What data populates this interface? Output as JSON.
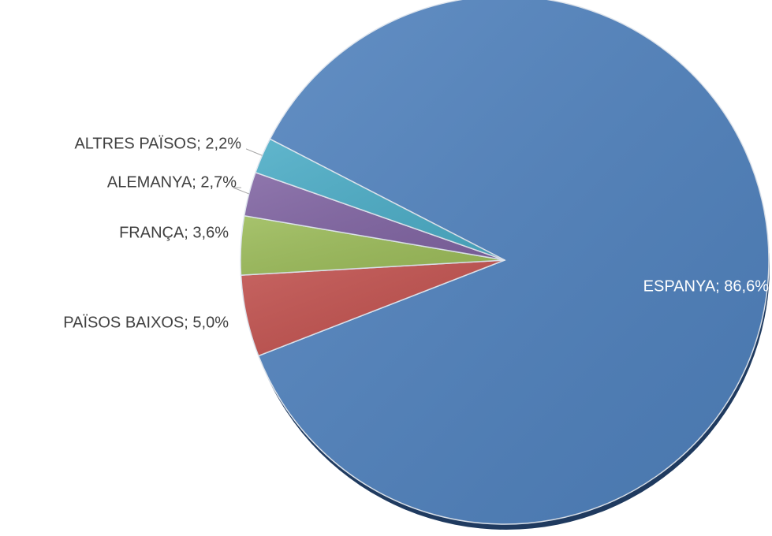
{
  "chart_data": {
    "type": "pie",
    "values": [
      86.6,
      5.0,
      3.6,
      2.7,
      2.2
    ],
    "value_labels": [
      "ESPANYA; 86,6%",
      "PAÏSOS BAIXOS; 5,0%",
      "FRANÇA; 3,6%",
      "ALEMANYA; 2,7%",
      "ALTRES PAÏSOS; 2,2%"
    ],
    "colors": [
      "#4f81bd",
      "#c0504d",
      "#9bbb59",
      "#8064a2",
      "#4bacc6"
    ]
  }
}
